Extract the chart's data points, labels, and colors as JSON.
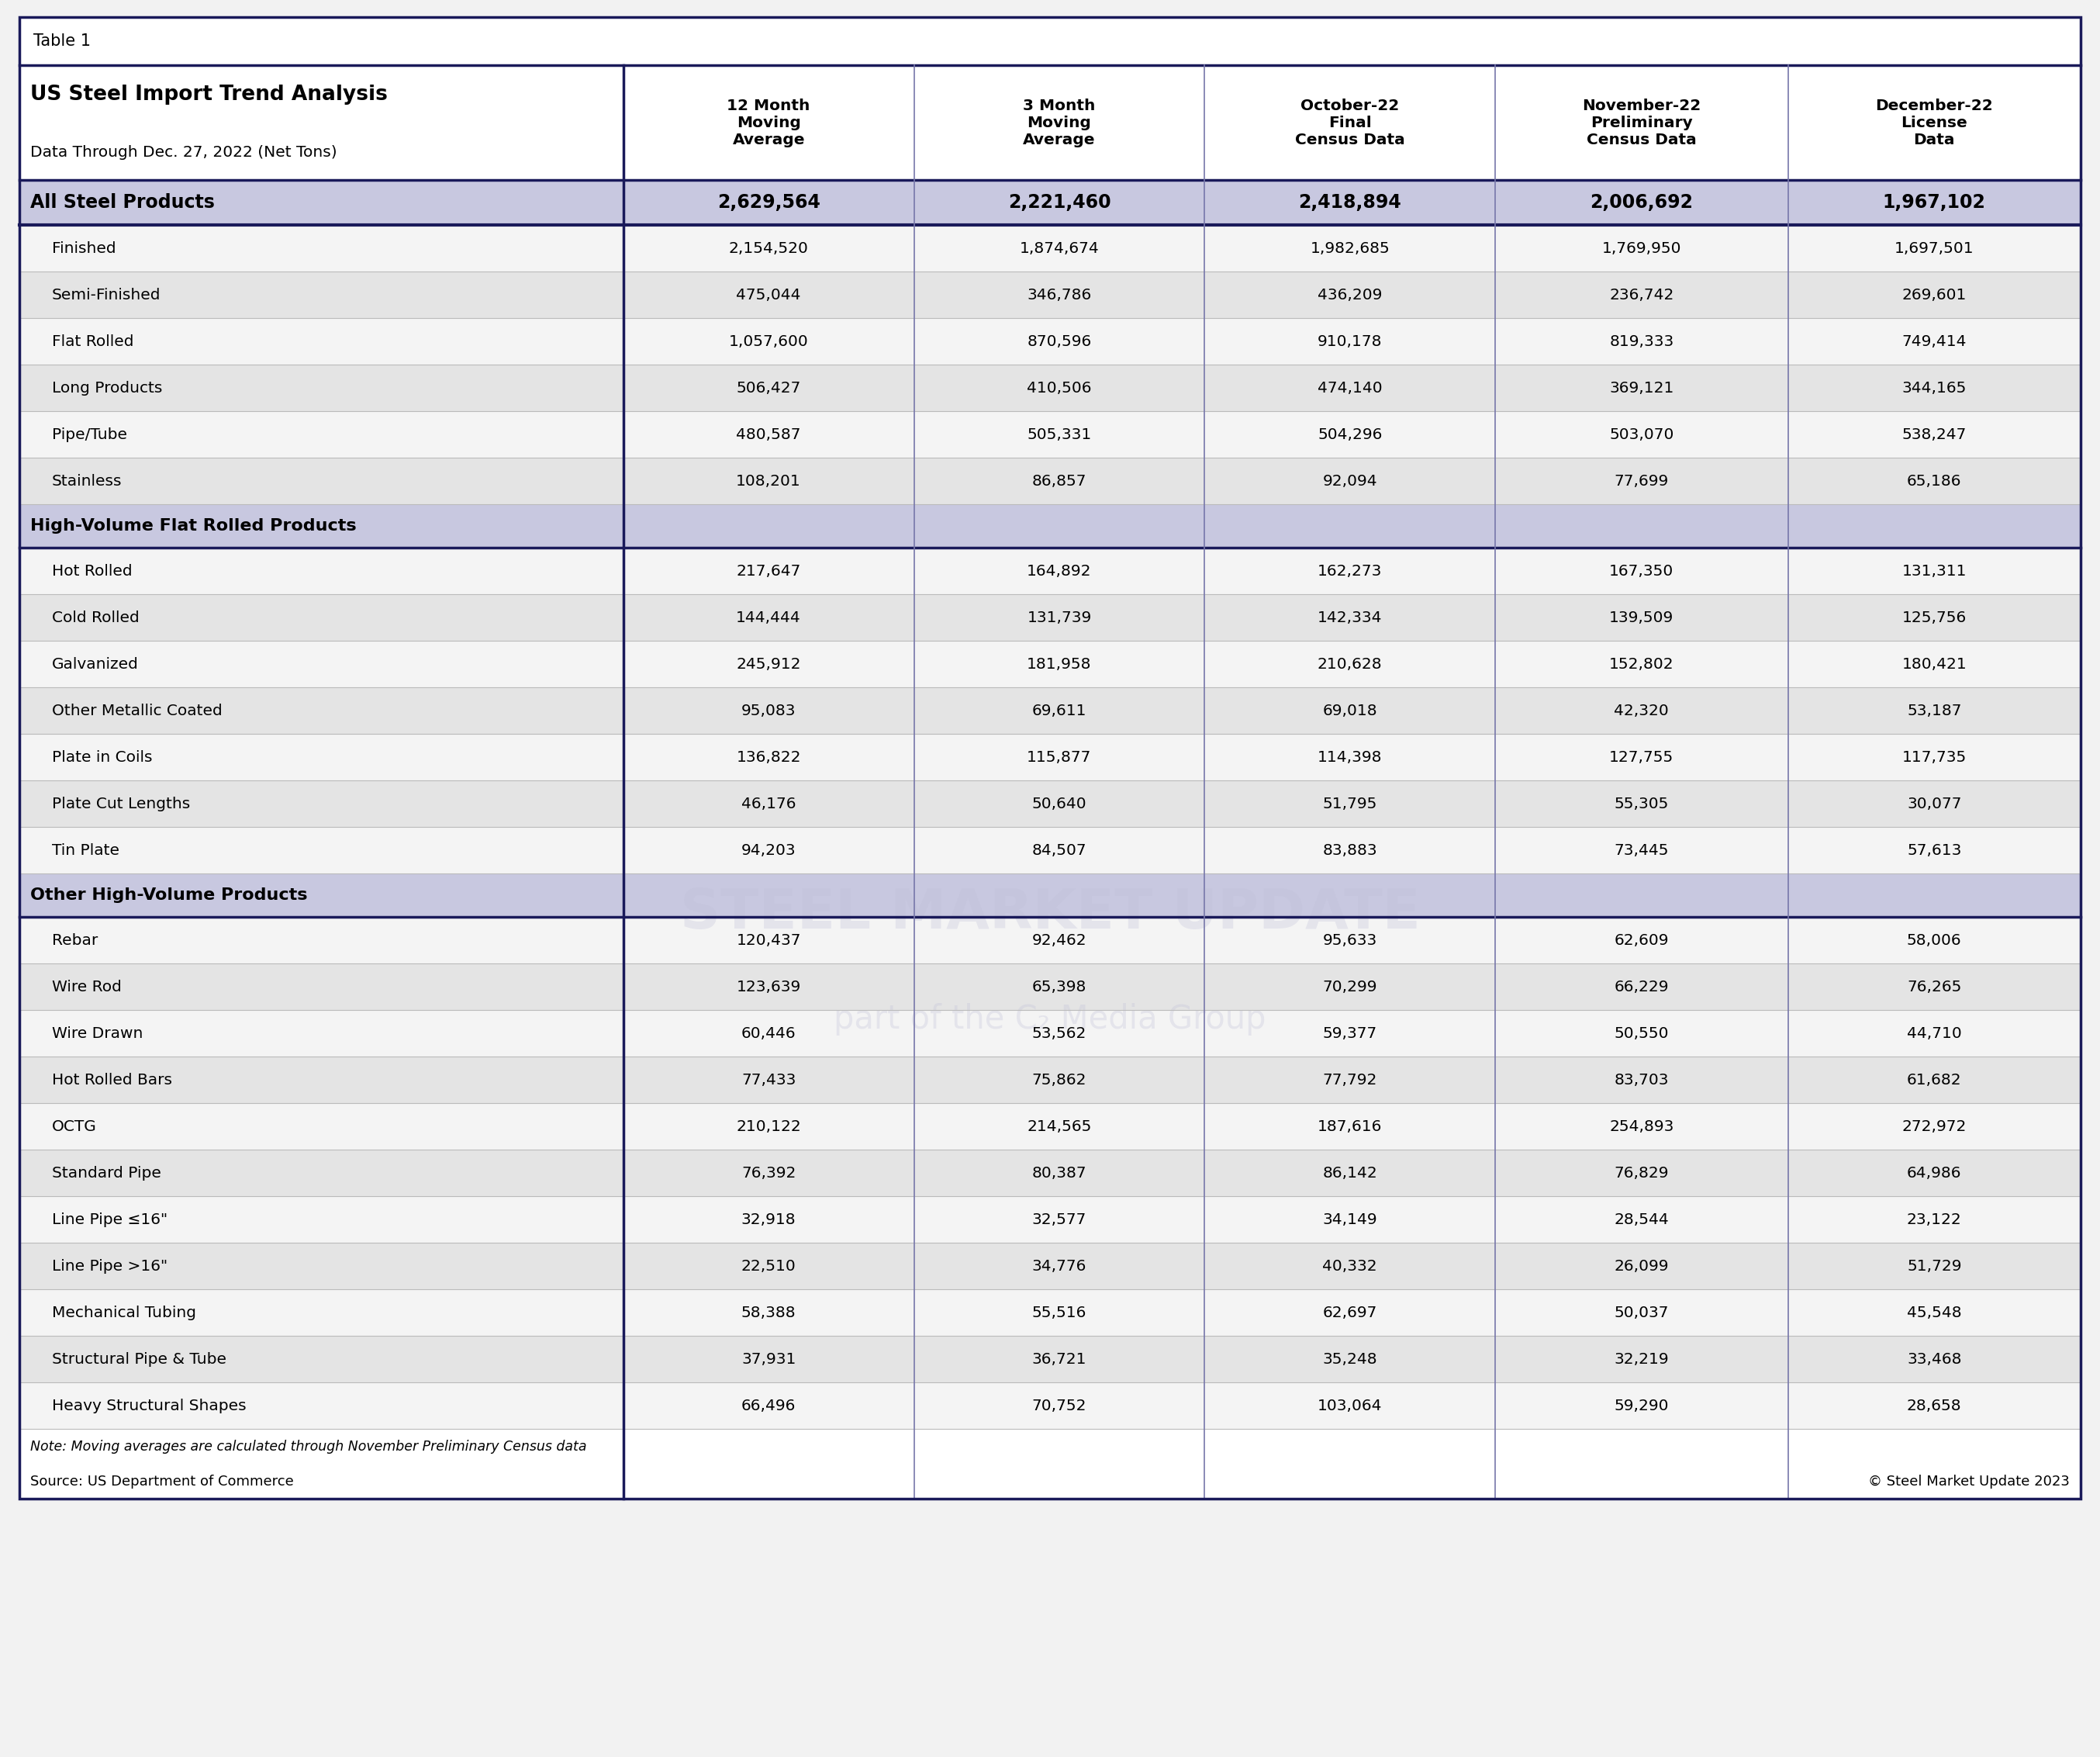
{
  "table_label": "Table 1",
  "title_line1": "US Steel Import Trend Analysis",
  "title_line2": "Data Through Dec. 27, 2022 (Net Tons)",
  "col_headers": [
    "12 Month\nMoving\nAverage",
    "3 Month\nMoving\nAverage",
    "October-22\nFinal\nCensus Data",
    "November-22\nPreliminary\nCensus Data",
    "December-22\nLicense\nData"
  ],
  "all_steel": {
    "label": "All Steel Products",
    "values": [
      "2,629,564",
      "2,221,460",
      "2,418,894",
      "2,006,692",
      "1,967,102"
    ]
  },
  "data_rows": [
    {
      "label": "Finished",
      "values": [
        "2,154,520",
        "1,874,674",
        "1,982,685",
        "1,769,950",
        "1,697,501"
      ],
      "type": "data",
      "shade": false
    },
    {
      "label": "Semi-Finished",
      "values": [
        "475,044",
        "346,786",
        "436,209",
        "236,742",
        "269,601"
      ],
      "type": "data",
      "shade": true
    },
    {
      "label": "Flat Rolled",
      "values": [
        "1,057,600",
        "870,596",
        "910,178",
        "819,333",
        "749,414"
      ],
      "type": "data",
      "shade": false
    },
    {
      "label": "Long Products",
      "values": [
        "506,427",
        "410,506",
        "474,140",
        "369,121",
        "344,165"
      ],
      "type": "data",
      "shade": true
    },
    {
      "label": "Pipe/Tube",
      "values": [
        "480,587",
        "505,331",
        "504,296",
        "503,070",
        "538,247"
      ],
      "type": "data",
      "shade": false
    },
    {
      "label": "Stainless",
      "values": [
        "108,201",
        "86,857",
        "92,094",
        "77,699",
        "65,186"
      ],
      "type": "data",
      "shade": true
    },
    {
      "label": "High-Volume Flat Rolled Products",
      "values": [
        "",
        "",
        "",
        "",
        ""
      ],
      "type": "section"
    },
    {
      "label": "Hot Rolled",
      "values": [
        "217,647",
        "164,892",
        "162,273",
        "167,350",
        "131,311"
      ],
      "type": "data",
      "shade": false
    },
    {
      "label": "Cold Rolled",
      "values": [
        "144,444",
        "131,739",
        "142,334",
        "139,509",
        "125,756"
      ],
      "type": "data",
      "shade": true
    },
    {
      "label": "Galvanized",
      "values": [
        "245,912",
        "181,958",
        "210,628",
        "152,802",
        "180,421"
      ],
      "type": "data",
      "shade": false
    },
    {
      "label": "Other Metallic Coated",
      "values": [
        "95,083",
        "69,611",
        "69,018",
        "42,320",
        "53,187"
      ],
      "type": "data",
      "shade": true
    },
    {
      "label": "Plate in Coils",
      "values": [
        "136,822",
        "115,877",
        "114,398",
        "127,755",
        "117,735"
      ],
      "type": "data",
      "shade": false
    },
    {
      "label": "Plate Cut Lengths",
      "values": [
        "46,176",
        "50,640",
        "51,795",
        "55,305",
        "30,077"
      ],
      "type": "data",
      "shade": true
    },
    {
      "label": "Tin Plate",
      "values": [
        "94,203",
        "84,507",
        "83,883",
        "73,445",
        "57,613"
      ],
      "type": "data",
      "shade": false
    },
    {
      "label": "Other High-Volume Products",
      "values": [
        "",
        "",
        "",
        "",
        ""
      ],
      "type": "section"
    },
    {
      "label": "Rebar",
      "values": [
        "120,437",
        "92,462",
        "95,633",
        "62,609",
        "58,006"
      ],
      "type": "data",
      "shade": false
    },
    {
      "label": "Wire Rod",
      "values": [
        "123,639",
        "65,398",
        "70,299",
        "66,229",
        "76,265"
      ],
      "type": "data",
      "shade": true
    },
    {
      "label": "Wire Drawn",
      "values": [
        "60,446",
        "53,562",
        "59,377",
        "50,550",
        "44,710"
      ],
      "type": "data",
      "shade": false
    },
    {
      "label": "Hot Rolled Bars",
      "values": [
        "77,433",
        "75,862",
        "77,792",
        "83,703",
        "61,682"
      ],
      "type": "data",
      "shade": true
    },
    {
      "label": "OCTG",
      "values": [
        "210,122",
        "214,565",
        "187,616",
        "254,893",
        "272,972"
      ],
      "type": "data",
      "shade": false
    },
    {
      "label": "Standard Pipe",
      "values": [
        "76,392",
        "80,387",
        "86,142",
        "76,829",
        "64,986"
      ],
      "type": "data",
      "shade": true
    },
    {
      "label": "Line Pipe ≤16\"",
      "values": [
        "32,918",
        "32,577",
        "34,149",
        "28,544",
        "23,122"
      ],
      "type": "data",
      "shade": false
    },
    {
      "label": "Line Pipe >16\"",
      "values": [
        "22,510",
        "34,776",
        "40,332",
        "26,099",
        "51,729"
      ],
      "type": "data",
      "shade": true
    },
    {
      "label": "Mechanical Tubing",
      "values": [
        "58,388",
        "55,516",
        "62,697",
        "50,037",
        "45,548"
      ],
      "type": "data",
      "shade": false
    },
    {
      "label": "Structural Pipe & Tube",
      "values": [
        "37,931",
        "36,721",
        "35,248",
        "32,219",
        "33,468"
      ],
      "type": "data",
      "shade": true
    },
    {
      "label": "Heavy Structural Shapes",
      "values": [
        "66,496",
        "70,752",
        "103,064",
        "59,290",
        "28,658"
      ],
      "type": "data",
      "shade": false
    }
  ],
  "note": "Note: Moving averages are calculated through November Preliminary Census data",
  "source": "Source: US Department of Commerce",
  "copyright": "© Steel Market Update 2023",
  "bg_color": "#f2f2f2",
  "header_bg": "#c8c8e0",
  "section_bg": "#c8c8e0",
  "data_shade_color": "#e4e4e4",
  "data_plain_color": "#f4f4f4",
  "border_color": "#1a1a5a",
  "col_border_color": "#7777aa",
  "white": "#ffffff"
}
